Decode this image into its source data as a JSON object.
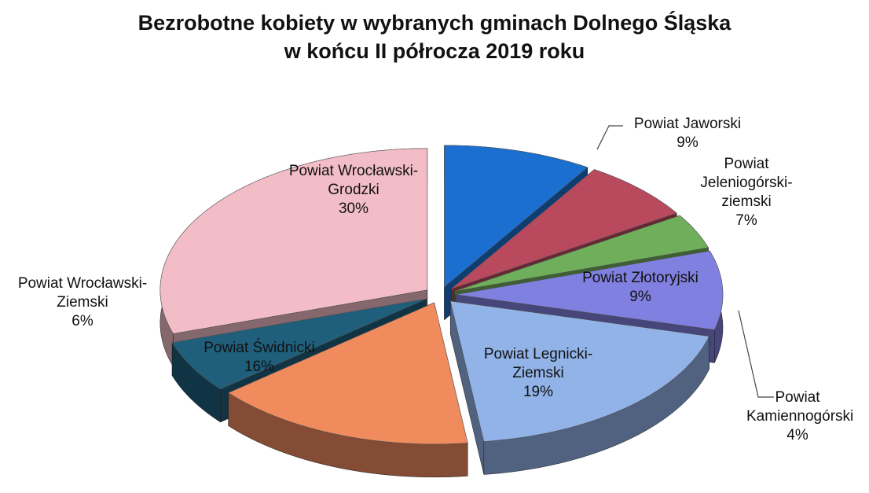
{
  "chart_data": {
    "type": "pie",
    "title": [
      "Bezrobotne kobiety w wybranych gminach Dolnego Śląska",
      "w końcu II półrocza 2019 roku"
    ],
    "categories": [
      "Powiat Jaworski",
      "Powiat Jeleniogórski-ziemski",
      "Powiat Kamiennogórski",
      "Powiat Złotoryjski",
      "Powiat Legnicki-Ziemski",
      "Powiat Świdnicki",
      "Powiat Wrocławski-Ziemski",
      "Powiat Wrocławski-Grodzki"
    ],
    "values": [
      9,
      7,
      4,
      9,
      19,
      16,
      6,
      30
    ],
    "value_labels": [
      "9%",
      "7%",
      "4%",
      "9%",
      "19%",
      "16%",
      "6%",
      "30%"
    ],
    "colors": [
      "#1a6fd0",
      "#b9495d",
      "#6fae5a",
      "#8080e0",
      "#91b3e8",
      "#f08b5e",
      "#1f5f7c",
      "#f2bdc7"
    ]
  }
}
